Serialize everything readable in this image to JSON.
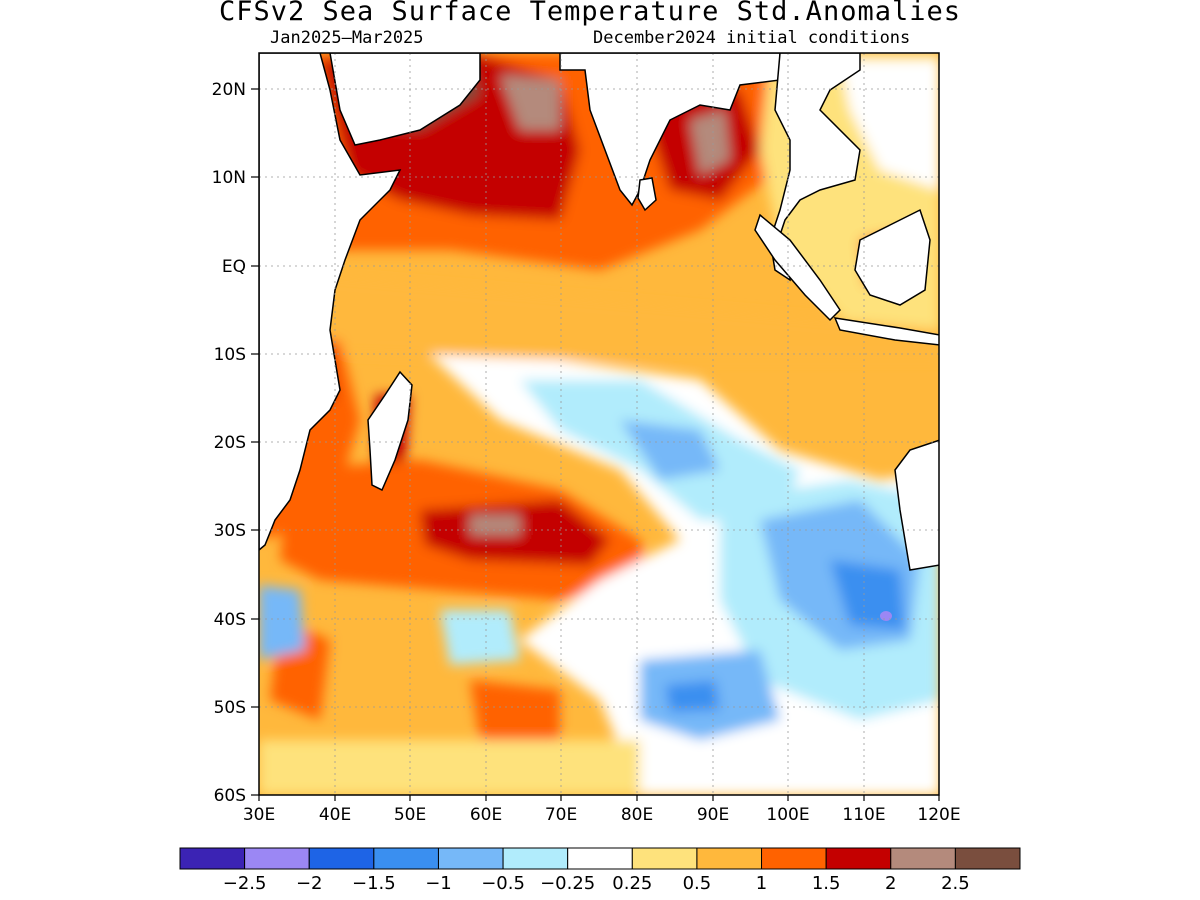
{
  "title": "CFSv2 Sea Surface Temperature Std.Anomalies",
  "subtitle_left": "Jan2025–Mar2025",
  "subtitle_right": "December2024 initial conditions",
  "map": {
    "lon_range": [
      30,
      120
    ],
    "lat_range": [
      -60,
      24
    ],
    "x_ticks": [
      "30E",
      "40E",
      "50E",
      "60E",
      "70E",
      "80E",
      "90E",
      "100E",
      "110E",
      "120E"
    ],
    "y_ticks": [
      "20N",
      "10N",
      "EQ",
      "10S",
      "20S",
      "30S",
      "40S",
      "50S",
      "60S"
    ],
    "land_fill": "#ffffff",
    "coast_color": "#000000"
  },
  "colorbar": {
    "colors": [
      "#3b23b4",
      "#9b87f4",
      "#1e64e6",
      "#3a8ff0",
      "#76b8f8",
      "#b1ecfc",
      "#ffffff",
      "#fee27c",
      "#ffb83c",
      "#ff6200",
      "#c40000",
      "#b48a7c",
      "#7a4e3e"
    ],
    "labels": [
      "−2.5",
      "−2",
      "−1.5",
      "−1",
      "−0.5",
      "−0.25",
      "0.25",
      "0.5",
      "1",
      "1.5",
      "2",
      "2.5"
    ]
  }
}
